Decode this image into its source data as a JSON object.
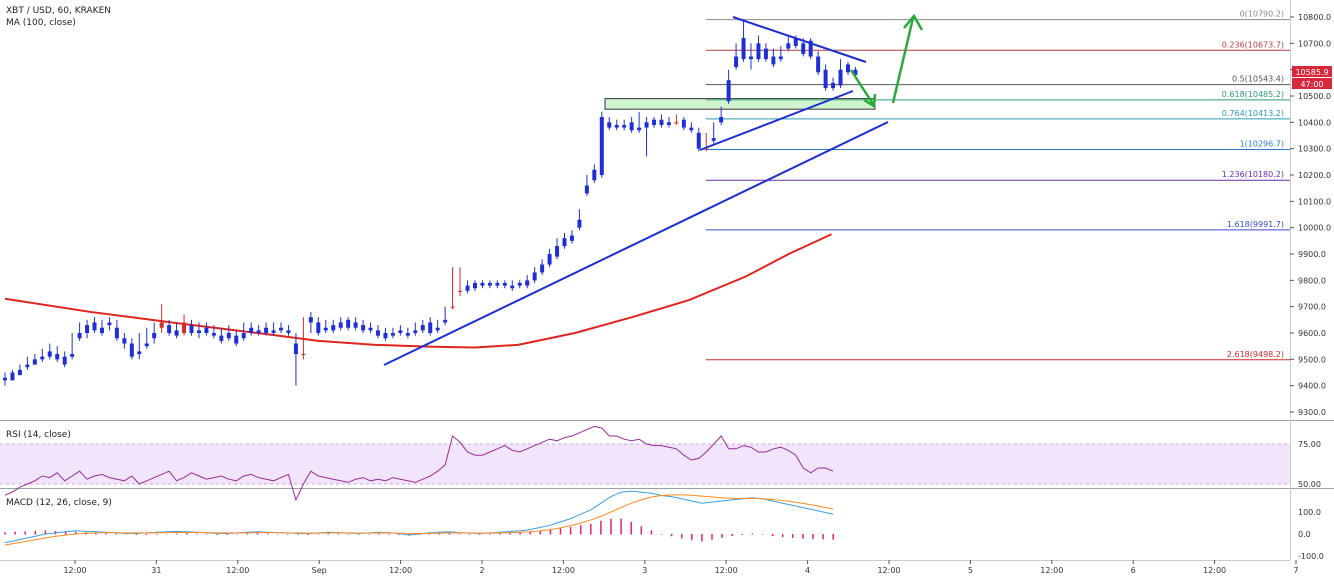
{
  "header": {
    "symbol": "XBT / USD, 60, KRAKEN",
    "ma_label": "MA (100, close)"
  },
  "rsi_panel": {
    "label": "RSI (14, close)",
    "levels": [
      75.0,
      50.0
    ]
  },
  "macd_panel": {
    "label": "MACD (12, 26, close, 9)",
    "levels": [
      100.0,
      0.0,
      -100.0
    ]
  },
  "colors": {
    "up": "#1f2fd6",
    "down": "#d42a2a",
    "ma": "#e0241e",
    "trendline": "#1c2fd0",
    "arrow": "#2aa83a",
    "rsi_band": "#f1e4fb",
    "rsi_line": "#9a2d9a",
    "macd": "#3aa0e0",
    "signal": "#ff8a1e",
    "hist": "#e0245e"
  },
  "price_badge": {
    "value": "10585.9",
    "time": "47:00"
  },
  "chart_data": {
    "type": "candlestick",
    "title": "XBT / USD, 60, KRAKEN",
    "xlabel": "",
    "ylabel": "",
    "x_ticks": [
      "12:00",
      "31",
      "12:00",
      "Sep",
      "12:00",
      "2",
      "12:00",
      "3",
      "12:00",
      "4",
      "12:00",
      "5",
      "12:00",
      "6",
      "12:00",
      "7"
    ],
    "y_ticks": [
      "10800.0",
      "10700.0",
      "10600.0",
      "10500.0",
      "10400.0",
      "10300.0",
      "10200.0",
      "10100.0",
      "10000.0",
      "9900.0",
      "9800.0",
      "9700.0",
      "9600.0",
      "9500.0",
      "9400.0",
      "9300.0"
    ],
    "ylim": [
      9260,
      10850
    ],
    "fib_levels": [
      {
        "label": "0(10790.2)",
        "value": 10790.2
      },
      {
        "label": "0.236(10673.7)",
        "value": 10673.7
      },
      {
        "label": "0.5(10543.4)",
        "value": 10543.4
      },
      {
        "label": "0.618(10485.2)",
        "value": 10485.2
      },
      {
        "label": "0.764(10413.2)",
        "value": 10413.2
      },
      {
        "label": "1(10296.7)",
        "value": 10296.7
      },
      {
        "label": "1.236(10180.2)",
        "value": 10180.2
      },
      {
        "label": "1.618(9991.7)",
        "value": 9991.7
      },
      {
        "label": "2.618(9498.2)",
        "value": 9498.2
      }
    ],
    "candles": [
      [
        9430,
        9450,
        9420,
        9400
      ],
      [
        9450,
        9460,
        9420,
        9420
      ],
      [
        9460,
        9480,
        9440,
        9450
      ],
      [
        9480,
        9510,
        9470,
        9460
      ],
      [
        9500,
        9520,
        9480,
        9480
      ],
      [
        9510,
        9540,
        9500,
        9490
      ],
      [
        9530,
        9560,
        9510,
        9500
      ],
      [
        9520,
        9550,
        9500,
        9490
      ],
      [
        9510,
        9530,
        9480,
        9470
      ],
      [
        9520,
        9600,
        9510,
        9500
      ],
      [
        9600,
        9640,
        9580,
        9570
      ],
      [
        9630,
        9650,
        9600,
        9580
      ],
      [
        9640,
        9660,
        9610,
        9600
      ],
      [
        9620,
        9650,
        9600,
        9590
      ],
      [
        9640,
        9660,
        9630,
        9610
      ],
      [
        9620,
        9650,
        9580,
        9570
      ],
      [
        9580,
        9600,
        9560,
        9540
      ],
      [
        9560,
        9580,
        9510,
        9500
      ],
      [
        9530,
        9600,
        9520,
        9500
      ],
      [
        9560,
        9620,
        9550,
        9540
      ],
      [
        9600,
        9640,
        9580,
        9560
      ],
      [
        9620,
        9710,
        9640,
        9600
      ],
      [
        9630,
        9650,
        9600,
        9590
      ],
      [
        9610,
        9640,
        9590,
        9580
      ],
      [
        9600,
        9670,
        9640,
        9590
      ],
      [
        9630,
        9650,
        9600,
        9590
      ],
      [
        9610,
        9640,
        9600,
        9580
      ],
      [
        9620,
        9640,
        9600,
        9590
      ],
      [
        9600,
        9630,
        9590,
        9580
      ],
      [
        9590,
        9620,
        9570,
        9560
      ],
      [
        9600,
        9630,
        9580,
        9570
      ],
      [
        9590,
        9610,
        9560,
        9550
      ],
      [
        9600,
        9640,
        9580,
        9570
      ],
      [
        9620,
        9640,
        9600,
        9590
      ],
      [
        9610,
        9630,
        9600,
        9590
      ],
      [
        9620,
        9640,
        9600,
        9590
      ],
      [
        9610,
        9640,
        9600,
        9590
      ],
      [
        9620,
        9640,
        9610,
        9600
      ],
      [
        9610,
        9630,
        9600,
        9590
      ],
      [
        9560,
        9600,
        9520,
        9400
      ],
      [
        9520,
        9660,
        9520,
        9500
      ],
      [
        9660,
        9680,
        9640,
        9600
      ],
      [
        9640,
        9660,
        9600,
        9590
      ],
      [
        9620,
        9650,
        9610,
        9600
      ],
      [
        9630,
        9650,
        9610,
        9600
      ],
      [
        9640,
        9660,
        9620,
        9610
      ],
      [
        9650,
        9660,
        9620,
        9610
      ],
      [
        9640,
        9660,
        9620,
        9610
      ],
      [
        9630,
        9650,
        9610,
        9600
      ],
      [
        9620,
        9640,
        9610,
        9600
      ],
      [
        9610,
        9630,
        9590,
        9580
      ],
      [
        9600,
        9620,
        9580,
        9570
      ],
      [
        9600,
        9620,
        9590,
        9580
      ],
      [
        9610,
        9630,
        9600,
        9590
      ],
      [
        9600,
        9620,
        9590,
        9580
      ],
      [
        9610,
        9640,
        9600,
        9590
      ],
      [
        9630,
        9650,
        9610,
        9600
      ],
      [
        9640,
        9660,
        9600,
        9590
      ],
      [
        9620,
        9650,
        9610,
        9600
      ],
      [
        9650,
        9700,
        9640,
        9630
      ],
      [
        9700,
        9850,
        9700,
        9690
      ],
      [
        9760,
        9850,
        9760,
        9740
      ],
      [
        9780,
        9800,
        9760,
        9750
      ],
      [
        9790,
        9800,
        9770,
        9760
      ],
      [
        9790,
        9800,
        9780,
        9770
      ],
      [
        9790,
        9800,
        9780,
        9770
      ],
      [
        9790,
        9800,
        9780,
        9770
      ],
      [
        9790,
        9800,
        9780,
        9770
      ],
      [
        9780,
        9800,
        9770,
        9760
      ],
      [
        9790,
        9800,
        9780,
        9770
      ],
      [
        9800,
        9820,
        9780,
        9770
      ],
      [
        9830,
        9850,
        9800,
        9790
      ],
      [
        9860,
        9880,
        9830,
        9820
      ],
      [
        9900,
        9920,
        9860,
        9850
      ],
      [
        9930,
        9960,
        9890,
        9880
      ],
      [
        9960,
        9980,
        9930,
        9920
      ],
      [
        9970,
        9990,
        9950,
        9940
      ],
      [
        10030,
        10070,
        10000,
        9990
      ],
      [
        10160,
        10200,
        10130,
        10120
      ],
      [
        10220,
        10240,
        10180,
        10170
      ],
      [
        10420,
        10440,
        10200,
        10190
      ],
      [
        10400,
        10420,
        10380,
        10370
      ],
      [
        10390,
        10410,
        10380,
        10370
      ],
      [
        10390,
        10410,
        10380,
        10370
      ],
      [
        10400,
        10420,
        10370,
        10360
      ],
      [
        10380,
        10440,
        10370,
        10360
      ],
      [
        10400,
        10420,
        10380,
        10270
      ],
      [
        10410,
        10420,
        10390,
        10380
      ],
      [
        10410,
        10430,
        10390,
        10380
      ],
      [
        10400,
        10420,
        10390,
        10380
      ],
      [
        10400,
        10430,
        10400,
        10390
      ],
      [
        10410,
        10420,
        10380,
        10370
      ],
      [
        10380,
        10400,
        10370,
        10360
      ],
      [
        10360,
        10380,
        10300,
        10290
      ],
      [
        10300,
        10360,
        10300,
        10290
      ],
      [
        10340,
        10400,
        10330,
        10320
      ],
      [
        10420,
        10460,
        10400,
        10390
      ],
      [
        10560,
        10600,
        10480,
        10470
      ],
      [
        10650,
        10700,
        10610,
        10600
      ],
      [
        10720,
        10790,
        10640,
        10630
      ],
      [
        10650,
        10700,
        10640,
        10600
      ],
      [
        10700,
        10730,
        10640,
        10630
      ],
      [
        10680,
        10700,
        10640,
        10630
      ],
      [
        10650,
        10680,
        10620,
        10610
      ],
      [
        10650,
        10690,
        10640,
        10630
      ],
      [
        10700,
        10730,
        10680,
        10670
      ],
      [
        10720,
        10730,
        10690,
        10680
      ],
      [
        10700,
        10720,
        10660,
        10650
      ],
      [
        10710,
        10720,
        10650,
        10640
      ],
      [
        10650,
        10670,
        10590,
        10580
      ],
      [
        10600,
        10620,
        10530,
        10520
      ],
      [
        10550,
        10570,
        10530,
        10520
      ],
      [
        10600,
        10640,
        10540,
        10530
      ],
      [
        10620,
        10630,
        10590,
        10580
      ],
      [
        10600,
        10610,
        10580,
        10570
      ]
    ],
    "ma100": [
      [
        0,
        9730
      ],
      [
        30,
        9680
      ],
      [
        60,
        9638
      ],
      [
        90,
        9598
      ],
      [
        110,
        9570
      ],
      [
        130,
        9555
      ],
      [
        150,
        9548
      ],
      [
        165,
        9545
      ],
      [
        180,
        9555
      ],
      [
        200,
        9600
      ],
      [
        220,
        9660
      ],
      [
        240,
        9725
      ],
      [
        260,
        9815
      ],
      [
        275,
        9900
      ],
      [
        290,
        9975
      ]
    ],
    "rsi": [
      43,
      45,
      48,
      50,
      52,
      55,
      54,
      57,
      52,
      55,
      58,
      53,
      55,
      56,
      54,
      53,
      52,
      55,
      50,
      52,
      54,
      56,
      58,
      52,
      54,
      57,
      55,
      53,
      54,
      55,
      53,
      52,
      55,
      56,
      54,
      53,
      52,
      54,
      56,
      40,
      50,
      58,
      55,
      54,
      53,
      52,
      51,
      53,
      54,
      52,
      53,
      52,
      54,
      53,
      52,
      51,
      53,
      55,
      58,
      62,
      80,
      76,
      70,
      68,
      68,
      70,
      72,
      74,
      71,
      70,
      72,
      74,
      76,
      78,
      77,
      79,
      80,
      82,
      84,
      86,
      85,
      80,
      80,
      78,
      77,
      78,
      75,
      74,
      74,
      73,
      72,
      68,
      65,
      66,
      70,
      75,
      80,
      72,
      72,
      74,
      73,
      70,
      70,
      72,
      73,
      71,
      68,
      60,
      57,
      60,
      60,
      58
    ],
    "macd": [
      -40,
      -30,
      -20,
      -10,
      0,
      5,
      10,
      15,
      12,
      10,
      8,
      5,
      3,
      2,
      5,
      8,
      10,
      12,
      10,
      8,
      5,
      3,
      2,
      5,
      8,
      10,
      8,
      6,
      5,
      3,
      2,
      5,
      8,
      6,
      4,
      2,
      5,
      8,
      6,
      2,
      -5,
      0,
      5,
      8,
      10,
      6,
      4,
      3,
      5,
      8,
      12,
      14,
      20,
      30,
      40,
      55,
      70,
      90,
      110,
      140,
      170,
      190,
      195,
      190,
      185,
      175,
      170,
      160,
      150,
      140,
      145,
      150,
      155,
      160,
      165,
      160,
      150,
      140,
      130,
      120,
      110,
      100,
      90
    ],
    "signal": [
      -50,
      -42,
      -34,
      -26,
      -18,
      -10,
      -5,
      0,
      3,
      5,
      6,
      6,
      5,
      5,
      5,
      5,
      6,
      7,
      7,
      7,
      6,
      5,
      5,
      5,
      5,
      6,
      6,
      6,
      5,
      5,
      4,
      4,
      5,
      5,
      5,
      4,
      4,
      5,
      5,
      4,
      2,
      2,
      3,
      4,
      5,
      5,
      5,
      4,
      4,
      5,
      6,
      8,
      10,
      14,
      20,
      28,
      38,
      50,
      64,
      80,
      100,
      120,
      140,
      155,
      168,
      175,
      178,
      178,
      176,
      172,
      168,
      165,
      162,
      162,
      162,
      160,
      157,
      152,
      146,
      139,
      131,
      122,
      113
    ],
    "hist": [
      8,
      10,
      12,
      14,
      16,
      14,
      12,
      10,
      8,
      6,
      4,
      2,
      0,
      -2,
      -2,
      -1,
      0,
      2,
      4,
      2,
      0,
      -2,
      -2,
      0,
      2,
      4,
      2,
      0,
      -1,
      -1,
      -2,
      0,
      2,
      1,
      0,
      -1,
      0,
      2,
      1,
      -2,
      -5,
      -2,
      2,
      4,
      5,
      1,
      -1,
      -1,
      1,
      3,
      6,
      8,
      10,
      16,
      20,
      27,
      32,
      40,
      46,
      60,
      70,
      70,
      55,
      35,
      17,
      0,
      -8,
      -18,
      -26,
      -32,
      -23,
      -15,
      -7,
      -2,
      3,
      0,
      -7,
      -12,
      -16,
      -19,
      -21,
      -22,
      -23
    ]
  }
}
